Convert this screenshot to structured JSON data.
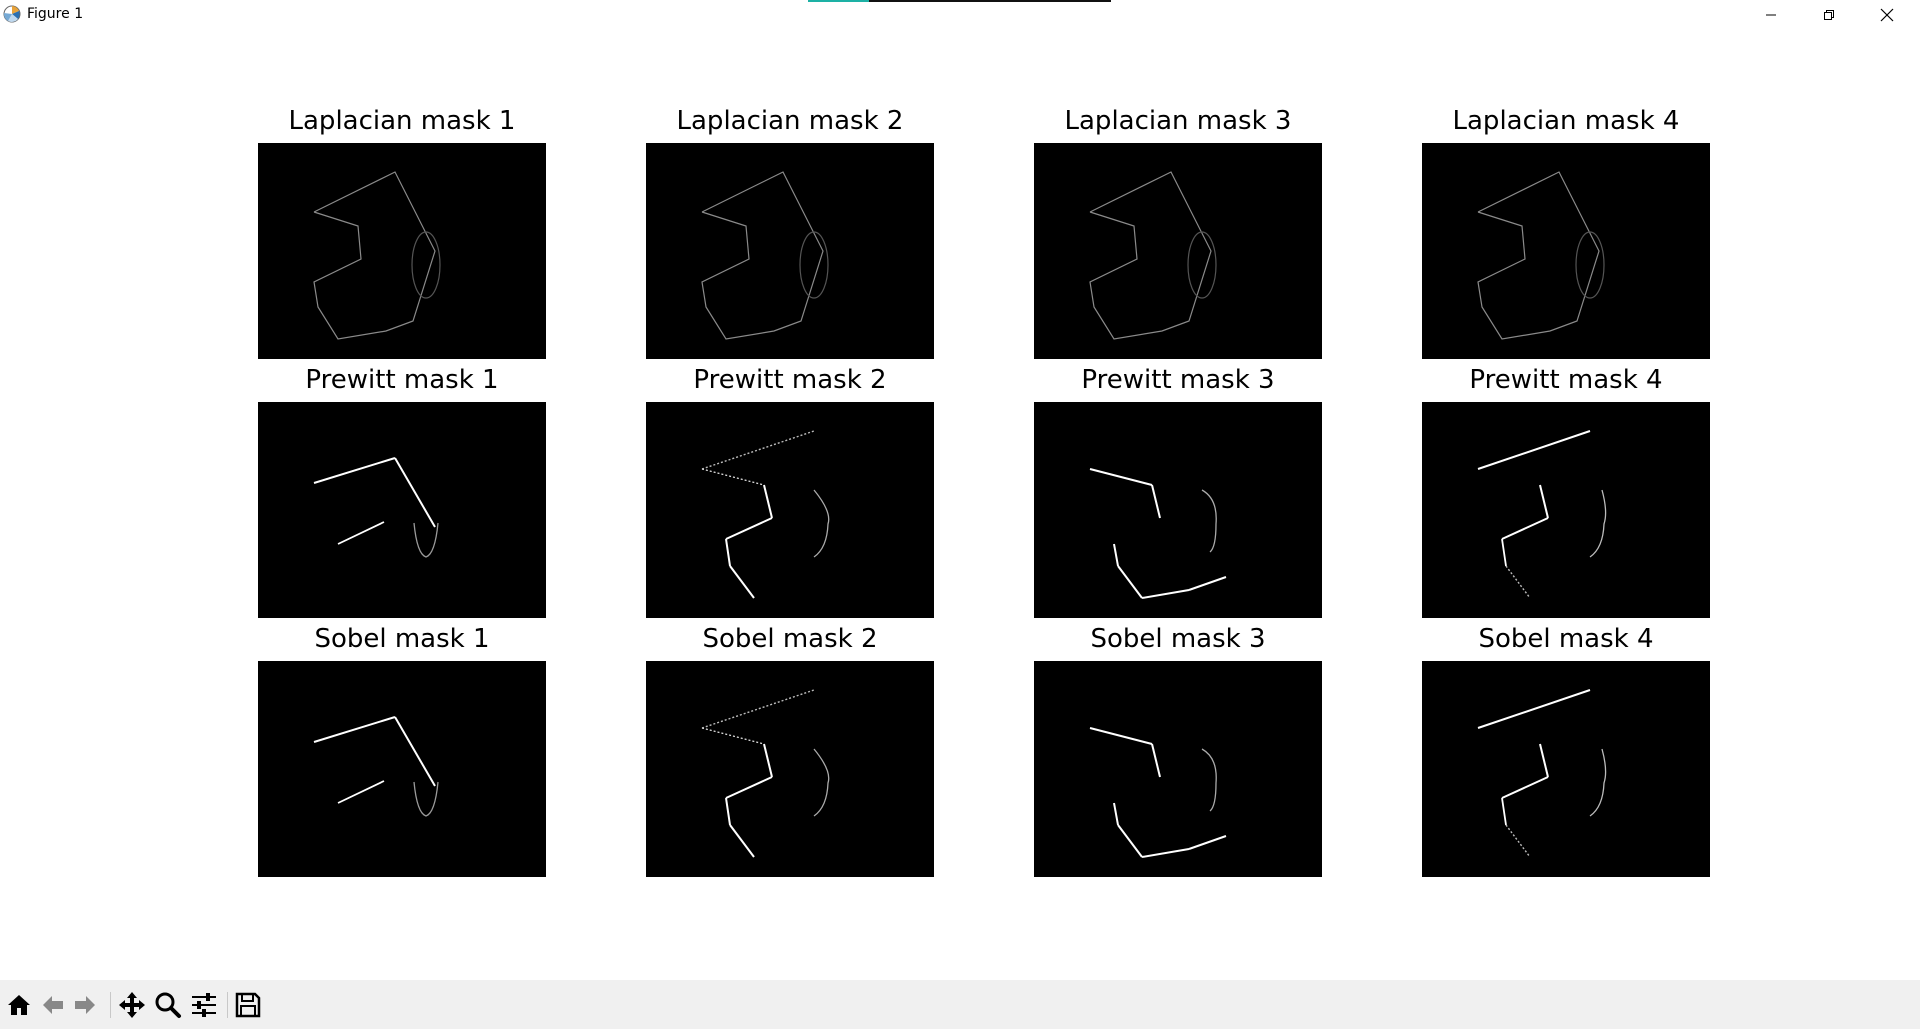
{
  "window": {
    "title": "Figure 1",
    "progress_fraction": 0.2
  },
  "figure": {
    "panels": [
      {
        "title": "Laplacian mask 1",
        "mask": "laplacian"
      },
      {
        "title": "Laplacian mask 2",
        "mask": "laplacian"
      },
      {
        "title": "Laplacian mask 3",
        "mask": "laplacian"
      },
      {
        "title": "Laplacian mask 4",
        "mask": "laplacian"
      },
      {
        "title": "Prewitt mask 1",
        "mask": "dir1"
      },
      {
        "title": "Prewitt mask 2",
        "mask": "dir2"
      },
      {
        "title": "Prewitt mask 3",
        "mask": "dir3"
      },
      {
        "title": "Prewitt mask 4",
        "mask": "dir4"
      },
      {
        "title": "Sobel mask 1",
        "mask": "dir1"
      },
      {
        "title": "Sobel mask 2",
        "mask": "dir2"
      },
      {
        "title": "Sobel mask 3",
        "mask": "dir3"
      },
      {
        "title": "Sobel mask 4",
        "mask": "dir4"
      }
    ]
  },
  "toolbar": {
    "tools": [
      "home-icon",
      "back-arrow-icon",
      "forward-arrow-icon",
      "pan-move-icon",
      "zoom-magnifier-icon",
      "configure-subplots-icon",
      "save-floppy-icon"
    ]
  },
  "colors": {
    "toolbar_bg": "#f0f0f0",
    "image_bg": "#000000",
    "edge_dim": "#8a8a8a",
    "edge_bright": "#ffffff"
  }
}
